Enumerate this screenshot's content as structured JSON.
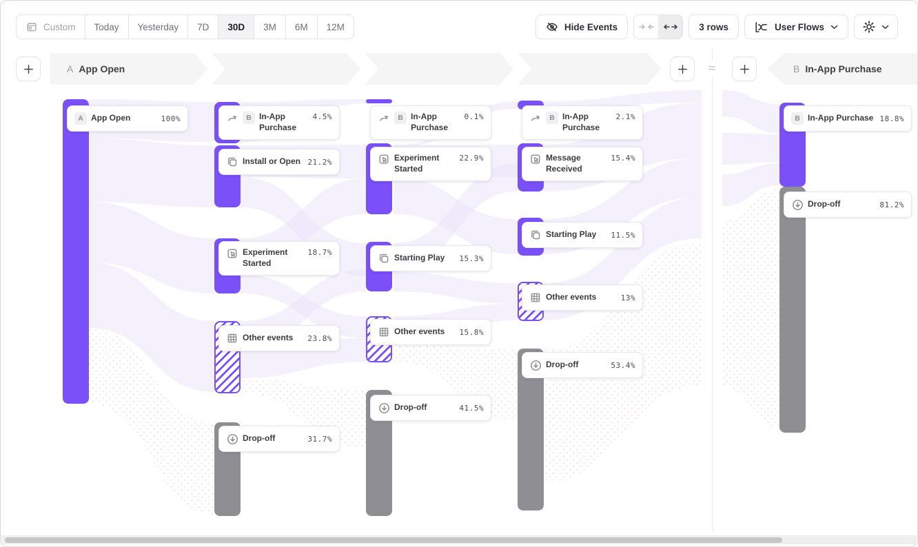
{
  "toolbar": {
    "date_ranges": [
      "Custom",
      "Today",
      "Yesterday",
      "7D",
      "30D",
      "3M",
      "6M",
      "12M"
    ],
    "active_range": "30D",
    "hide_events": "Hide Events",
    "rows": "3 rows",
    "view": "User Flows"
  },
  "header": {
    "start": {
      "badge": "A",
      "label": "App Open"
    },
    "end": {
      "badge": "B",
      "label": "In-App Purchase"
    },
    "approx_symbol": "≈"
  },
  "colors": {
    "accent_purple": "#7a50f8",
    "dropoff_gray": "#8f8f93",
    "ribbon": "#e9e3f9"
  },
  "flow": {
    "columns": [
      {
        "name": "step-1",
        "nodes": [
          {
            "label": "App Open",
            "pct": "100%",
            "badge": "A",
            "icon": null,
            "bar": "purple"
          }
        ]
      },
      {
        "name": "step-2",
        "nodes": [
          {
            "label": "In-App Purchase",
            "pct": "4.5%",
            "badge": "B",
            "icon": "flow-arrow",
            "bar": "purple"
          },
          {
            "label": "Install or Open",
            "pct": "21.2%",
            "icon": "squares",
            "bar": "purple"
          },
          {
            "label": "Experiment Started",
            "pct": "18.7%",
            "icon": "experiment",
            "bar": "purple"
          },
          {
            "label": "Other events",
            "pct": "23.8%",
            "icon": "grid",
            "bar": "hatch"
          },
          {
            "label": "Drop-off",
            "pct": "31.7%",
            "icon": "dropoff",
            "bar": "gray"
          }
        ]
      },
      {
        "name": "step-3",
        "nodes": [
          {
            "label": "In-App Purchase",
            "pct": "0.1%",
            "badge": "B",
            "icon": "flow-arrow",
            "bar": "purple"
          },
          {
            "label": "Experiment Started",
            "pct": "22.9%",
            "icon": "experiment",
            "bar": "purple"
          },
          {
            "label": "Starting Play",
            "pct": "15.3%",
            "icon": "squares",
            "bar": "purple"
          },
          {
            "label": "Other events",
            "pct": "15.8%",
            "icon": "grid",
            "bar": "hatch"
          },
          {
            "label": "Drop-off",
            "pct": "41.5%",
            "icon": "dropoff",
            "bar": "gray"
          }
        ]
      },
      {
        "name": "step-4",
        "nodes": [
          {
            "label": "In-App Purchase",
            "pct": "2.1%",
            "badge": "B",
            "icon": "flow-arrow",
            "bar": "purple"
          },
          {
            "label": "Message Received",
            "pct": "15.4%",
            "icon": "experiment",
            "bar": "purple"
          },
          {
            "label": "Starting Play",
            "pct": "11.5%",
            "icon": "squares",
            "bar": "purple"
          },
          {
            "label": "Other events",
            "pct": "13%",
            "icon": "grid",
            "bar": "hatch"
          },
          {
            "label": "Drop-off",
            "pct": "53.4%",
            "icon": "dropoff",
            "bar": "gray"
          }
        ]
      },
      {
        "name": "end-event",
        "nodes": [
          {
            "label": "In-App Purchase",
            "pct": "18.8%",
            "badge": "B",
            "icon": null,
            "bar": "purple"
          },
          {
            "label": "Drop-off",
            "pct": "81.2%",
            "icon": "dropoff",
            "bar": "gray"
          }
        ]
      }
    ]
  }
}
